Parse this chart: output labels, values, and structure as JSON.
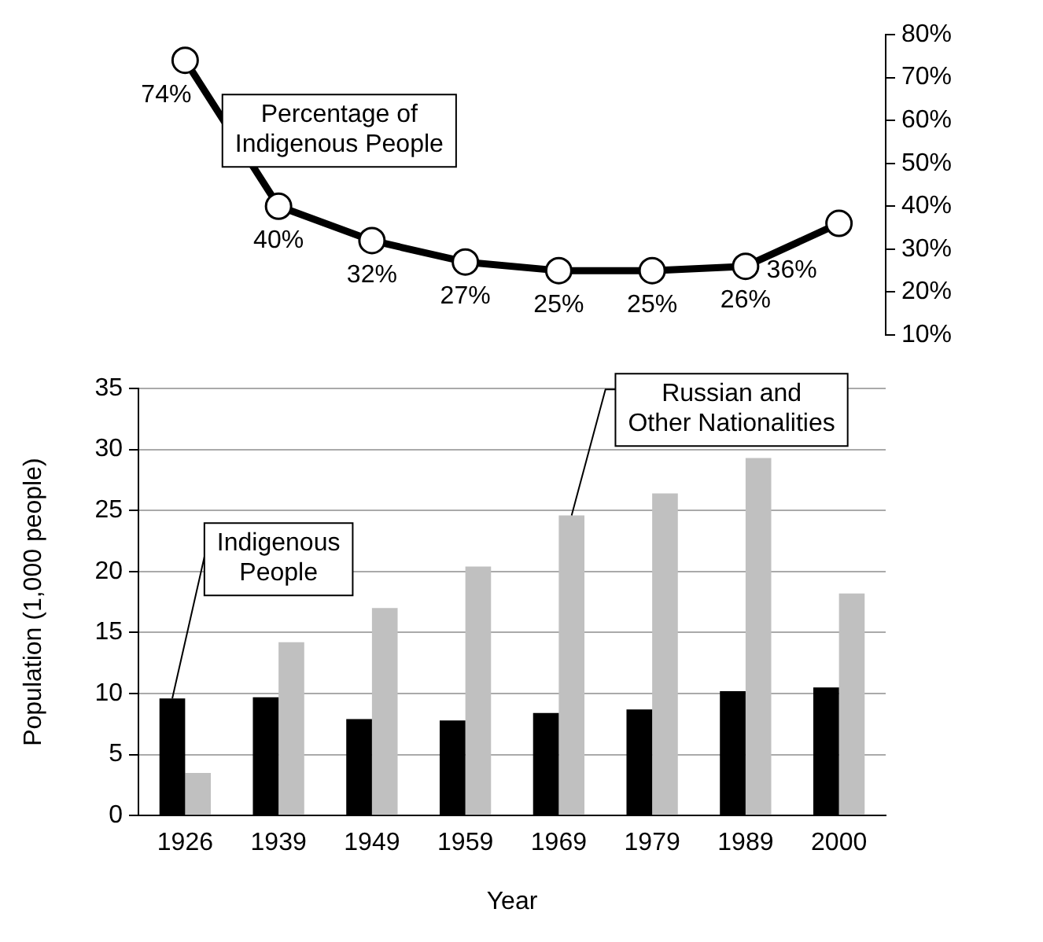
{
  "chart_data": [
    {
      "type": "line",
      "categories": [
        null,
        null,
        null,
        null,
        null,
        null,
        null,
        null
      ],
      "series": [
        {
          "name": "Percentage of Indigenous People",
          "color": "#000000",
          "values": [
            74,
            40,
            32,
            27,
            25,
            25,
            26,
            36
          ],
          "value_labels": [
            "74%",
            "40%",
            "32%",
            "27%",
            "25%",
            "25%",
            "26%",
            "36%"
          ]
        }
      ],
      "ylim": [
        10,
        80
      ],
      "yticks": [
        {
          "value": 10,
          "label": "10%"
        },
        {
          "value": 20,
          "label": "20%"
        },
        {
          "value": 30,
          "label": "30%"
        },
        {
          "value": 40,
          "label": "40%"
        },
        {
          "value": 50,
          "label": "50%"
        },
        {
          "value": 60,
          "label": "60%"
        },
        {
          "value": 70,
          "label": "70%"
        },
        {
          "value": 80,
          "label": "80%"
        }
      ],
      "marker": "circle",
      "line_style": "solid",
      "grid": false,
      "legend": false
    },
    {
      "type": "bar",
      "categories": [
        "1926",
        "1939",
        "1949",
        "1959",
        "1969",
        "1979",
        "1989",
        "2000"
      ],
      "series": [
        {
          "name": "Indigenous People",
          "color": "#000000",
          "values": [
            9.6,
            9.7,
            7.9,
            7.8,
            8.4,
            8.7,
            10.2,
            10.5
          ]
        },
        {
          "name": "Russian and Other Nationalities",
          "color": "#c0c0c0",
          "values": [
            3.5,
            14.2,
            17.0,
            20.4,
            24.6,
            26.4,
            29.3,
            18.2
          ]
        }
      ],
      "xlabel": "Year",
      "ylabel": "Population (1,000 people)",
      "ylim": [
        0,
        35
      ],
      "yticks": [
        0,
        5,
        10,
        15,
        20,
        25,
        30,
        35
      ],
      "grid": "y",
      "legend": false
    }
  ]
}
